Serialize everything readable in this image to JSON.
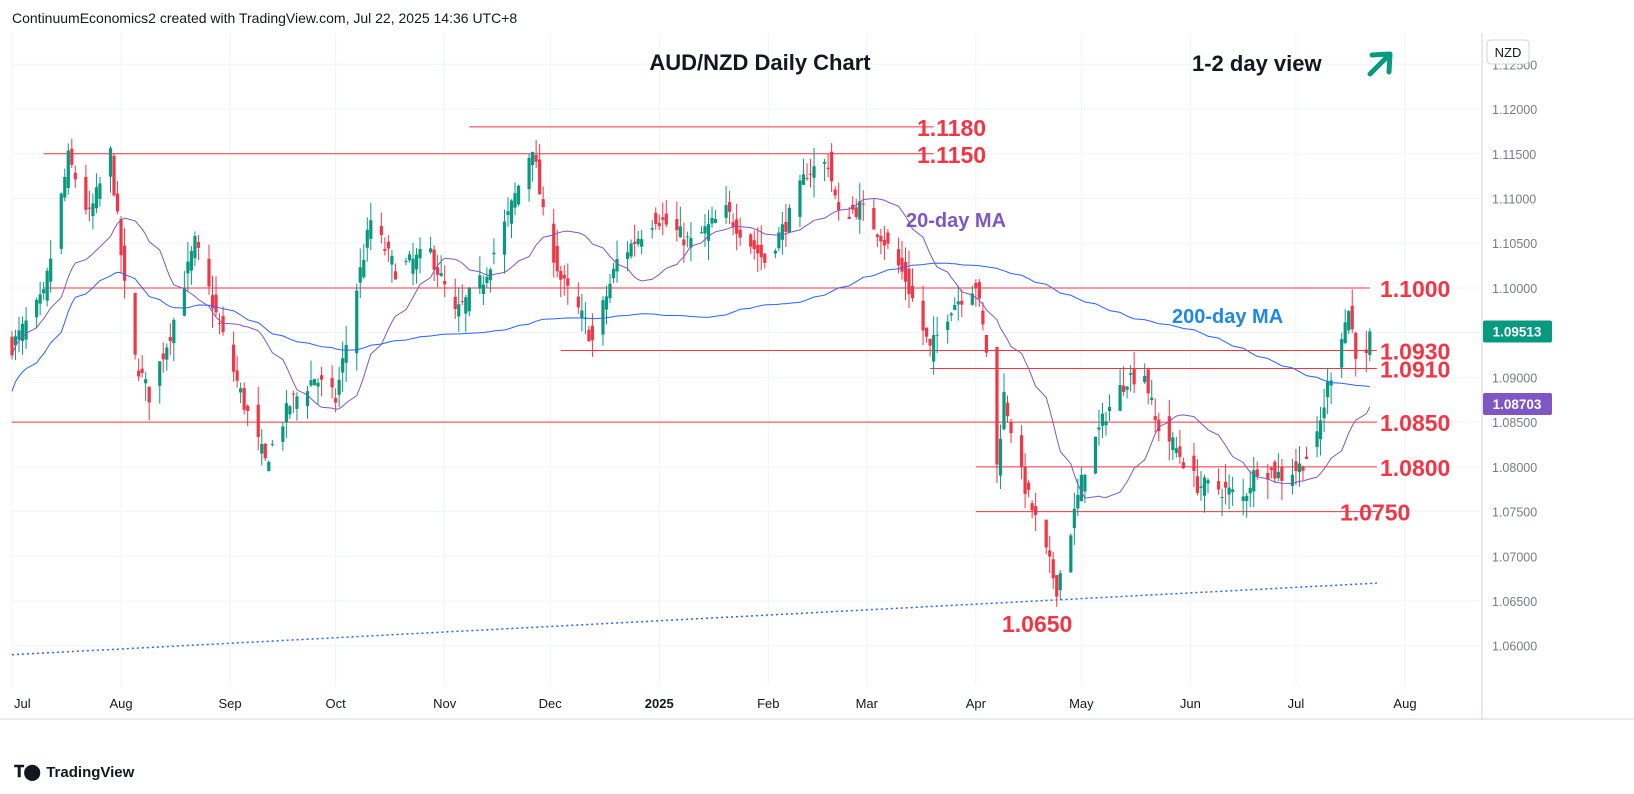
{
  "header": {
    "attribution": "ContinuumEconomics2 created with TradingView.com, Jul 22, 2025 14:36 UTC+8"
  },
  "footer": {
    "brand": "TradingView",
    "logo": "tradingview-logo-icon"
  },
  "colors": {
    "up": "#089981",
    "down": "#f23645",
    "level_line": "#f23645",
    "level_text": "#f23645",
    "ma20": "#7e57c2",
    "ma200": "#2962ff",
    "ma200_label": "#1e88e5",
    "trend": "#2962ff",
    "arrow": "#089981",
    "grid": "#f0f3fa",
    "axis_text": "#131722"
  },
  "chart_data": {
    "type": "candlestick",
    "title": "AUD/NZD Daily Chart",
    "view_label": "1-2 day view",
    "view_icon": "arrow-up-right-icon",
    "currency": "NZD",
    "ylim": [
      1.0555,
      1.1285
    ],
    "y_ticks": [
      "1.12500",
      "1.12000",
      "1.11500",
      "1.11000",
      "1.10500",
      "1.10000",
      "1.09500",
      "1.09000",
      "1.08500",
      "1.08000",
      "1.07500",
      "1.07000",
      "1.06500",
      "1.06000"
    ],
    "x_ticks": [
      "Jul",
      "Aug",
      "Sep",
      "Oct",
      "Nov",
      "Dec",
      "2025",
      "Feb",
      "Mar",
      "Apr",
      "May",
      "Jun",
      "Jul",
      "Aug"
    ],
    "last_price": "1.09513",
    "ma20_value": "1.08703",
    "ma_labels": {
      "ma20": "20-day MA",
      "ma200": "200-day MA"
    },
    "levels": [
      {
        "value": 1.118,
        "label": "1.1180"
      },
      {
        "value": 1.115,
        "label": "1.1150"
      },
      {
        "value": 1.1,
        "label": "1.1000"
      },
      {
        "value": 1.093,
        "label": "1.0930"
      },
      {
        "value": 1.091,
        "label": "1.0910"
      },
      {
        "value": 1.085,
        "label": "1.0850"
      },
      {
        "value": 1.08,
        "label": "1.0800"
      },
      {
        "value": 1.075,
        "label": "1.0750"
      },
      {
        "value": 1.065,
        "label": "1.0650"
      }
    ],
    "anchors": [
      [
        "2024-07-01",
        1.0935
      ],
      [
        "2024-07-10",
        1.099
      ],
      [
        "2024-07-17",
        1.1145
      ],
      [
        "2024-07-23",
        1.108
      ],
      [
        "2024-07-29",
        1.115
      ],
      [
        "2024-08-02",
        1.1
      ],
      [
        "2024-08-05",
        1.092
      ],
      [
        "2024-08-09",
        1.088
      ],
      [
        "2024-08-15",
        1.095
      ],
      [
        "2024-08-22",
        1.105
      ],
      [
        "2024-08-28",
        1.097
      ],
      [
        "2024-09-05",
        1.087
      ],
      [
        "2024-09-11",
        1.0805
      ],
      [
        "2024-09-18",
        1.087
      ],
      [
        "2024-09-25",
        1.09
      ],
      [
        "2024-10-01",
        1.0875
      ],
      [
        "2024-10-07",
        1.1
      ],
      [
        "2024-10-11",
        1.1075
      ],
      [
        "2024-10-18",
        1.102
      ],
      [
        "2024-10-28",
        1.104
      ],
      [
        "2024-11-04",
        1.097
      ],
      [
        "2024-11-12",
        1.101
      ],
      [
        "2024-11-19",
        1.108
      ],
      [
        "2024-11-26",
        1.116
      ],
      [
        "2024-11-29",
        1.108
      ],
      [
        "2024-12-04",
        1.101
      ],
      [
        "2024-12-11",
        1.096
      ],
      [
        "2024-12-13",
        1.094
      ],
      [
        "2024-12-20",
        1.103
      ],
      [
        "2024-12-31",
        1.108
      ],
      [
        "2025-01-10",
        1.105
      ],
      [
        "2025-01-20",
        1.1085
      ],
      [
        "2025-01-31",
        1.103
      ],
      [
        "2025-02-07",
        1.108
      ],
      [
        "2025-02-12",
        1.113
      ],
      [
        "2025-02-18",
        1.114
      ],
      [
        "2025-02-21",
        1.108
      ],
      [
        "2025-02-27",
        1.109
      ],
      [
        "2025-03-05",
        1.106
      ],
      [
        "2025-03-12",
        1.101
      ],
      [
        "2025-03-19",
        1.093
      ],
      [
        "2025-03-25",
        1.098
      ],
      [
        "2025-04-01",
        1.1005
      ],
      [
        "2025-04-04",
        1.093
      ],
      [
        "2025-04-07",
        1.08
      ],
      [
        "2025-04-09",
        1.088
      ],
      [
        "2025-04-14",
        1.079
      ],
      [
        "2025-04-18",
        1.074
      ],
      [
        "2025-04-22",
        1.069
      ],
      [
        "2025-04-24",
        1.0665
      ],
      [
        "2025-04-28",
        1.073
      ],
      [
        "2025-05-02",
        1.08
      ],
      [
        "2025-05-08",
        1.086
      ],
      [
        "2025-05-14",
        1.09
      ],
      [
        "2025-05-19",
        1.0905
      ],
      [
        "2025-05-22",
        1.085
      ],
      [
        "2025-05-28",
        1.082
      ],
      [
        "2025-06-03",
        1.078
      ],
      [
        "2025-06-10",
        1.0775
      ],
      [
        "2025-06-16",
        1.0765
      ],
      [
        "2025-06-20",
        1.08
      ],
      [
        "2025-06-27",
        1.079
      ],
      [
        "2025-07-02",
        1.08
      ],
      [
        "2025-07-07",
        1.083
      ],
      [
        "2025-07-10",
        1.089
      ],
      [
        "2025-07-14",
        1.095
      ],
      [
        "2025-07-16",
        1.0975
      ],
      [
        "2025-07-18",
        1.093
      ],
      [
        "2025-07-21",
        1.092
      ],
      [
        "2025-07-22",
        1.0951
      ]
    ]
  }
}
